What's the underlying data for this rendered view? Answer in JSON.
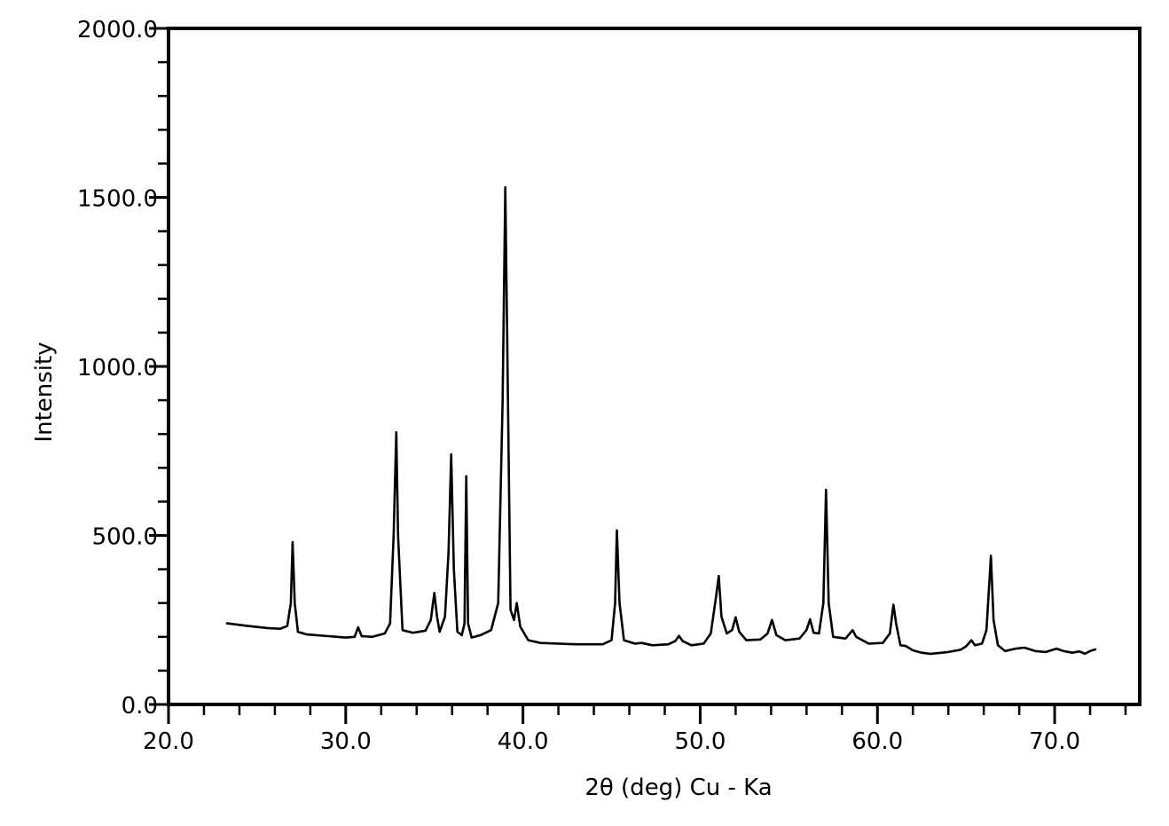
{
  "chart_data": {
    "type": "line",
    "title": "",
    "xlabel": "2θ (deg) Cu - Ka",
    "ylabel": "Intensity",
    "xlim": [
      20.0,
      74.8
    ],
    "ylim": [
      0,
      2000
    ],
    "x_ticks": [
      20,
      30,
      40,
      50,
      60,
      70
    ],
    "x_tick_labels": [
      "20.0",
      "30.0",
      "40.0",
      "50.0",
      "60.0",
      "70.0"
    ],
    "x_minor_step": 2,
    "y_ticks": [
      0,
      500,
      1000,
      1500,
      2000
    ],
    "y_tick_labels": [
      "0.0",
      "500.0",
      "1000.0",
      "1500.0",
      "2000.0"
    ],
    "y_minor_step": 100,
    "grid": false,
    "line_color": "#000000",
    "series": [
      {
        "points": [
          [
            23.3,
            240
          ],
          [
            24.5,
            232
          ],
          [
            25.6,
            226
          ],
          [
            26.3,
            224
          ],
          [
            26.7,
            232
          ],
          [
            26.9,
            300
          ],
          [
            27.0,
            480
          ],
          [
            27.12,
            300
          ],
          [
            27.3,
            215
          ],
          [
            27.8,
            207
          ],
          [
            29.0,
            202
          ],
          [
            30.0,
            198
          ],
          [
            30.5,
            200
          ],
          [
            30.7,
            228
          ],
          [
            30.9,
            202
          ],
          [
            31.5,
            200
          ],
          [
            32.2,
            210
          ],
          [
            32.5,
            240
          ],
          [
            32.7,
            500
          ],
          [
            32.85,
            805
          ],
          [
            32.95,
            500
          ],
          [
            33.2,
            220
          ],
          [
            33.8,
            212
          ],
          [
            34.5,
            218
          ],
          [
            34.8,
            250
          ],
          [
            35.0,
            330
          ],
          [
            35.15,
            260
          ],
          [
            35.3,
            215
          ],
          [
            35.6,
            260
          ],
          [
            35.8,
            450
          ],
          [
            35.95,
            740
          ],
          [
            36.1,
            400
          ],
          [
            36.3,
            215
          ],
          [
            36.55,
            205
          ],
          [
            36.7,
            240
          ],
          [
            36.8,
            675
          ],
          [
            36.9,
            240
          ],
          [
            37.1,
            198
          ],
          [
            37.6,
            205
          ],
          [
            38.2,
            220
          ],
          [
            38.6,
            300
          ],
          [
            38.85,
            900
          ],
          [
            39.0,
            1530
          ],
          [
            39.15,
            900
          ],
          [
            39.3,
            280
          ],
          [
            39.5,
            250
          ],
          [
            39.65,
            300
          ],
          [
            39.85,
            230
          ],
          [
            40.3,
            190
          ],
          [
            41.0,
            182
          ],
          [
            43.0,
            178
          ],
          [
            44.5,
            178
          ],
          [
            45.0,
            190
          ],
          [
            45.2,
            300
          ],
          [
            45.3,
            515
          ],
          [
            45.45,
            300
          ],
          [
            45.7,
            190
          ],
          [
            46.3,
            180
          ],
          [
            46.7,
            182
          ],
          [
            47.3,
            175
          ],
          [
            48.2,
            178
          ],
          [
            48.6,
            188
          ],
          [
            48.8,
            203
          ],
          [
            49.0,
            188
          ],
          [
            49.5,
            175
          ],
          [
            50.2,
            180
          ],
          [
            50.6,
            210
          ],
          [
            50.9,
            320
          ],
          [
            51.05,
            380
          ],
          [
            51.2,
            260
          ],
          [
            51.5,
            210
          ],
          [
            51.8,
            220
          ],
          [
            52.0,
            258
          ],
          [
            52.2,
            215
          ],
          [
            52.6,
            190
          ],
          [
            53.4,
            192
          ],
          [
            53.8,
            210
          ],
          [
            54.05,
            250
          ],
          [
            54.3,
            205
          ],
          [
            54.8,
            190
          ],
          [
            55.6,
            195
          ],
          [
            56.0,
            220
          ],
          [
            56.2,
            252
          ],
          [
            56.4,
            212
          ],
          [
            56.7,
            210
          ],
          [
            56.95,
            300
          ],
          [
            57.1,
            635
          ],
          [
            57.25,
            300
          ],
          [
            57.5,
            200
          ],
          [
            58.2,
            195
          ],
          [
            58.6,
            220
          ],
          [
            58.8,
            200
          ],
          [
            59.5,
            180
          ],
          [
            60.3,
            182
          ],
          [
            60.7,
            210
          ],
          [
            60.9,
            295
          ],
          [
            61.05,
            240
          ],
          [
            61.3,
            175
          ],
          [
            61.6,
            173
          ],
          [
            62.0,
            160
          ],
          [
            62.5,
            153
          ],
          [
            63.0,
            150
          ],
          [
            64.0,
            155
          ],
          [
            64.7,
            162
          ],
          [
            65.0,
            172
          ],
          [
            65.3,
            190
          ],
          [
            65.5,
            175
          ],
          [
            65.9,
            180
          ],
          [
            66.15,
            220
          ],
          [
            66.4,
            440
          ],
          [
            66.55,
            250
          ],
          [
            66.8,
            175
          ],
          [
            67.2,
            158
          ],
          [
            67.8,
            165
          ],
          [
            68.3,
            168
          ],
          [
            68.9,
            158
          ],
          [
            69.5,
            155
          ],
          [
            70.1,
            165
          ],
          [
            70.5,
            158
          ],
          [
            71.0,
            153
          ],
          [
            71.4,
            157
          ],
          [
            71.7,
            150
          ],
          [
            72.0,
            158
          ],
          [
            72.3,
            163
          ]
        ]
      }
    ]
  }
}
